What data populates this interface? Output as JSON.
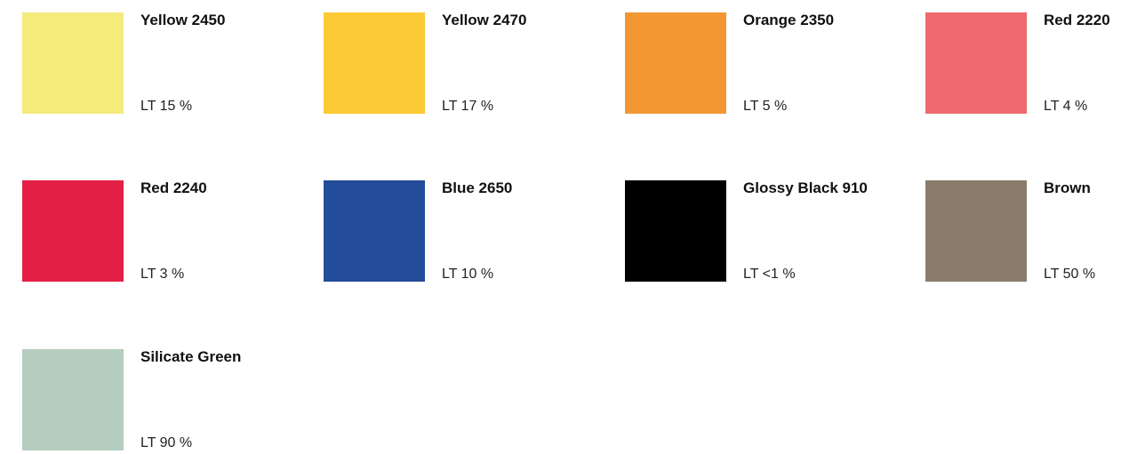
{
  "swatches": [
    {
      "name": "Yellow 2450",
      "lt": "LT 15 %",
      "color": "#F5EB7D"
    },
    {
      "name": "Yellow 2470",
      "lt": "LT 17 %",
      "color": "#FBCA34"
    },
    {
      "name": "Orange 2350",
      "lt": "LT 5 %",
      "color": "#F39733"
    },
    {
      "name": "Red 2220",
      "lt": "LT 4 %",
      "color": "#EE6A6F"
    },
    {
      "name": "Red 2240",
      "lt": "LT 3 %",
      "color": "#E41F45"
    },
    {
      "name": "Blue 2650",
      "lt": "LT 10 %",
      "color": "#234D99"
    },
    {
      "name": "Glossy Black 910",
      "lt": "LT <1 %",
      "color": "#000000"
    },
    {
      "name": "Brown",
      "lt": "LT 50 %",
      "color": "#8A7C6B"
    },
    {
      "name": "Silicate Green",
      "lt": "LT 90 %",
      "color": "#B4CDBE"
    }
  ]
}
